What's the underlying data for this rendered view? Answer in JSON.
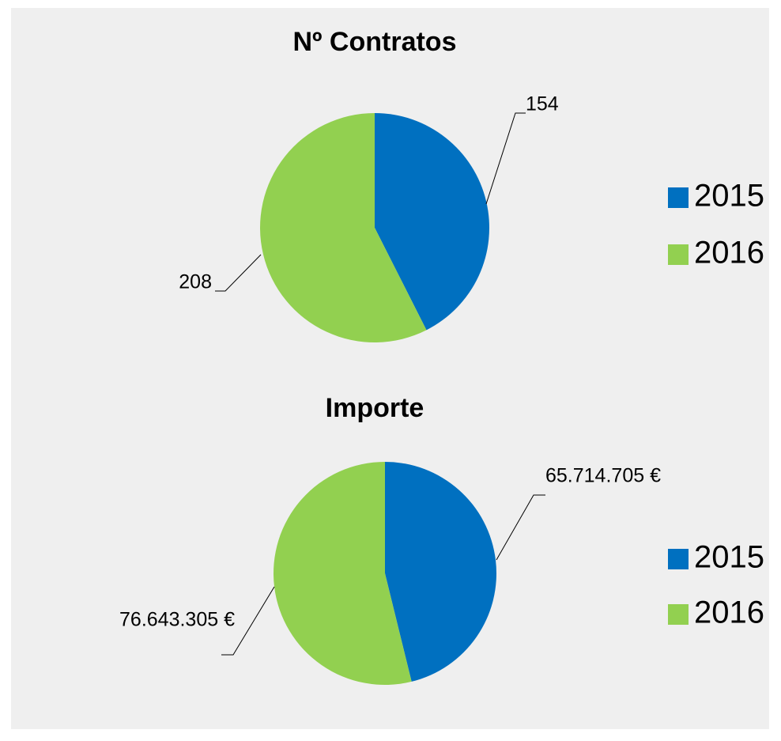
{
  "chart_data": [
    {
      "type": "pie",
      "title": "Nº Contratos",
      "categories": [
        "2015",
        "2016"
      ],
      "values": [
        154,
        208
      ],
      "colors": [
        "#0070c0",
        "#92d050"
      ],
      "legend": "right"
    },
    {
      "type": "pie",
      "title": "Importe",
      "categories": [
        "2015",
        "2016"
      ],
      "values": [
        65714705,
        76643305
      ],
      "value_labels": [
        "65.714.705 €",
        "76.643.305 €"
      ],
      "colors": [
        "#0070c0",
        "#92d050"
      ],
      "legend": "right"
    }
  ]
}
